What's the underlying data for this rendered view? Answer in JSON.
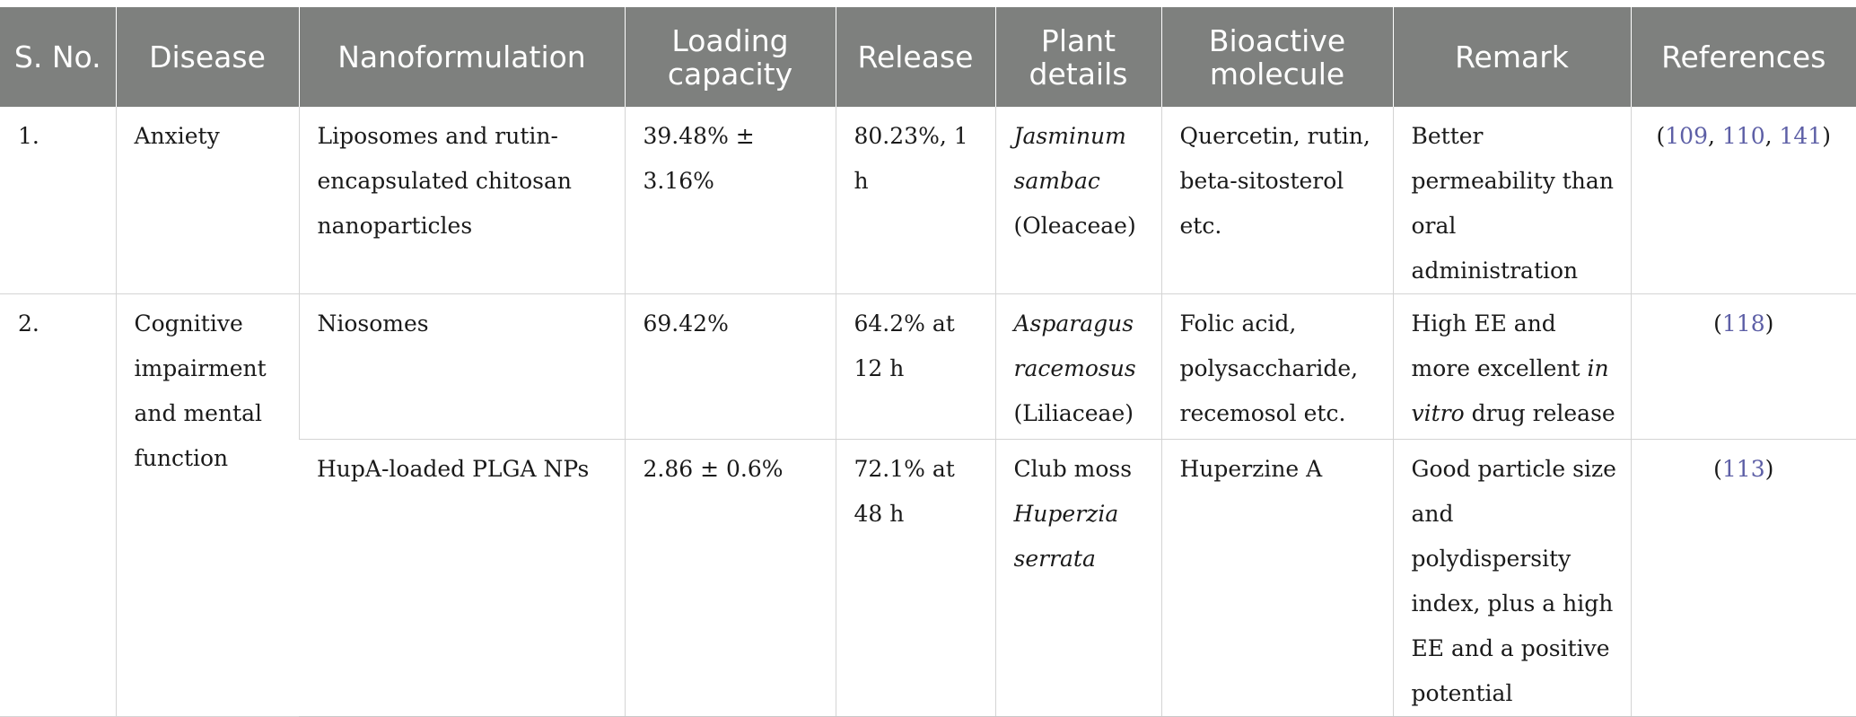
{
  "headers": {
    "sno": "S. No.",
    "disease": "Disease",
    "nanoformulation": "Nanoformulation",
    "loading": "Loading capacity",
    "release": "Release",
    "plant": "Plant details",
    "bioactive": "Bioactive molecule",
    "remark": "Remark",
    "references": "References"
  },
  "rows": [
    {
      "sno": "1.",
      "disease": "Anxiety",
      "nanoformulation": "Liposomes and rutin-encapsulated chitosan nanoparticles",
      "loading": "39.48% ± 3.16%",
      "release": "80.23%, 1 h",
      "plant_italic": "Jasminum sambac",
      "plant_family": "(Oleaceae)",
      "bioactive": "Quercetin, rutin, beta-sitosterol etc.",
      "remark": "Better permeability than oral administration",
      "refs": [
        "109",
        "110",
        "141"
      ]
    },
    {
      "sno": "2.",
      "disease": "Cognitive impairment and mental function",
      "nanoformulation": "Niosomes",
      "loading": "69.42%",
      "release": "64.2% at 12 h",
      "plant_italic": "Asparagus racemosus",
      "plant_family": "(Liliaceae)",
      "bioactive": "Folic acid, polysaccharide, recemosol etc.",
      "remark_pre": "High EE and more excellent ",
      "remark_italic": "in vitro",
      "remark_post": " drug release",
      "refs": [
        "118"
      ]
    },
    {
      "nanoformulation": "HupA-loaded PLGA NPs",
      "loading": "2.86 ± 0.6%",
      "release": "72.1% at 48 h",
      "plant_pre": "Club moss ",
      "plant_italic": "Huperzia serrata",
      "bioactive": "Huperzine A",
      "remark": "Good particle size and polydispersity index, plus a high EE and a positive potential",
      "refs": [
        "113"
      ]
    }
  ],
  "punct": {
    "open": "(",
    "sep": ", ",
    "close": ")"
  }
}
